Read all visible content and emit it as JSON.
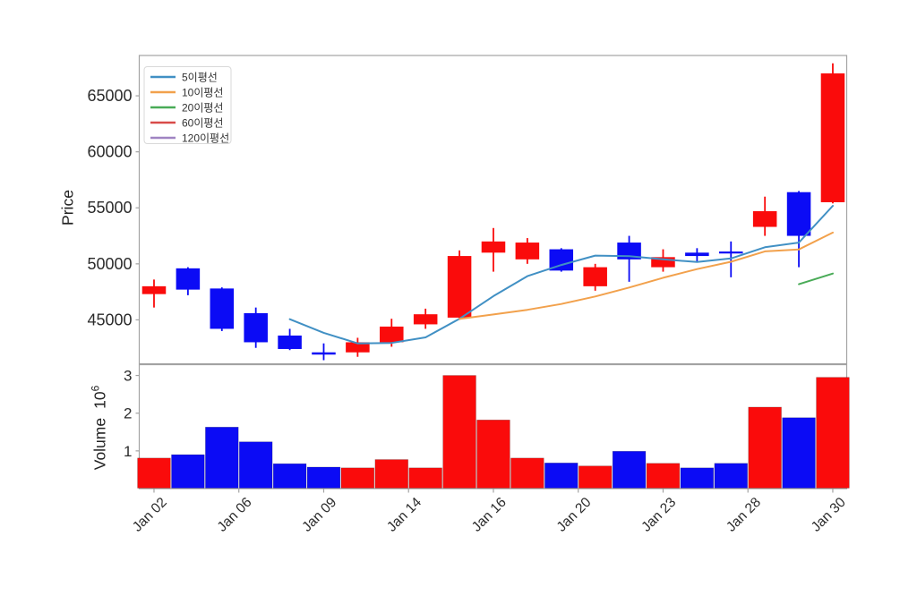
{
  "figure": {
    "price_ylabel": "Price",
    "volume_ylabel": "Volume",
    "volume_scale_base": "10",
    "volume_scale_exp": "6"
  },
  "chart_data": {
    "type": "candlestick+volume",
    "title": "",
    "price": {
      "label": "Price",
      "ticks": [
        45000,
        50000,
        55000,
        60000,
        65000
      ],
      "ylim": [
        41080,
        68600
      ]
    },
    "volume": {
      "label": "Volume",
      "unit": "10^6",
      "ticks": [
        1,
        2,
        3
      ],
      "ylim": [
        0,
        3.286
      ]
    },
    "xlim": [
      -0.435,
      20.41
    ],
    "x_ticks": [
      {
        "pos": 0,
        "label": "Jan 02"
      },
      {
        "pos": 2.5,
        "label": "Jan 06"
      },
      {
        "pos": 5,
        "label": "Jan 09"
      },
      {
        "pos": 7.5,
        "label": "Jan 14"
      },
      {
        "pos": 10,
        "label": "Jan 16"
      },
      {
        "pos": 12.5,
        "label": "Jan 20"
      },
      {
        "pos": 15,
        "label": "Jan 23"
      },
      {
        "pos": 17.5,
        "label": "Jan 28"
      },
      {
        "pos": 20,
        "label": "Jan 30"
      }
    ],
    "legend": [
      {
        "label": "5이평선",
        "color": "#4190c4"
      },
      {
        "label": "10이평선",
        "color": "#f2a14c"
      },
      {
        "label": "20이평선",
        "color": "#49ab57"
      },
      {
        "label": "60이평선",
        "color": "#d84b49"
      },
      {
        "label": "120이평선",
        "color": "#a084c2"
      }
    ],
    "up_color": "#fa0b0b",
    "down_color": "#0b0bf5",
    "candles": [
      {
        "i": 0,
        "open": 47300,
        "high": 48600,
        "low": 46100,
        "close": 48000,
        "volume": 0.81,
        "dir": "up"
      },
      {
        "i": 1,
        "open": 49600,
        "high": 49700,
        "low": 47200,
        "close": 47700,
        "volume": 0.9,
        "dir": "down"
      },
      {
        "i": 2,
        "open": 47800,
        "high": 47900,
        "low": 44000,
        "close": 44200,
        "volume": 1.63,
        "dir": "down"
      },
      {
        "i": 3,
        "open": 45600,
        "high": 46100,
        "low": 42500,
        "close": 43000,
        "volume": 1.24,
        "dir": "down"
      },
      {
        "i": 4,
        "open": 43600,
        "high": 44200,
        "low": 42300,
        "close": 42400,
        "volume": 0.66,
        "dir": "down"
      },
      {
        "i": 5,
        "open": 42100,
        "high": 42900,
        "low": 41400,
        "close": 41900,
        "volume": 0.57,
        "dir": "down"
      },
      {
        "i": 6,
        "open": 42100,
        "high": 43400,
        "low": 41700,
        "close": 43000,
        "volume": 0.55,
        "dir": "up"
      },
      {
        "i": 7,
        "open": 43000,
        "high": 45100,
        "low": 42600,
        "close": 44400,
        "volume": 0.77,
        "dir": "up"
      },
      {
        "i": 8,
        "open": 44600,
        "high": 46000,
        "low": 44200,
        "close": 45500,
        "volume": 0.55,
        "dir": "up"
      },
      {
        "i": 9,
        "open": 45200,
        "high": 51200,
        "low": 45000,
        "close": 50700,
        "volume": 3.0,
        "dir": "up"
      },
      {
        "i": 10,
        "open": 51000,
        "high": 53200,
        "low": 49300,
        "close": 52000,
        "volume": 1.82,
        "dir": "up"
      },
      {
        "i": 11,
        "open": 50400,
        "high": 52300,
        "low": 50000,
        "close": 51900,
        "volume": 0.81,
        "dir": "up"
      },
      {
        "i": 12,
        "open": 51300,
        "high": 51400,
        "low": 49300,
        "close": 49400,
        "volume": 0.68,
        "dir": "down"
      },
      {
        "i": 13,
        "open": 48000,
        "high": 50000,
        "low": 47600,
        "close": 49700,
        "volume": 0.6,
        "dir": "up"
      },
      {
        "i": 14,
        "open": 51900,
        "high": 52500,
        "low": 48400,
        "close": 50400,
        "volume": 0.99,
        "dir": "down"
      },
      {
        "i": 15,
        "open": 49700,
        "high": 51300,
        "low": 49300,
        "close": 50600,
        "volume": 0.67,
        "dir": "up"
      },
      {
        "i": 16,
        "open": 51000,
        "high": 51400,
        "low": 50200,
        "close": 50700,
        "volume": 0.55,
        "dir": "down"
      },
      {
        "i": 17,
        "open": 51100,
        "high": 52000,
        "low": 48800,
        "close": 51000,
        "volume": 0.67,
        "dir": "down"
      },
      {
        "i": 18,
        "open": 53300,
        "high": 56000,
        "low": 52500,
        "close": 54700,
        "volume": 2.16,
        "dir": "up"
      },
      {
        "i": 19,
        "open": 56400,
        "high": 56500,
        "low": 49700,
        "close": 52500,
        "volume": 1.88,
        "dir": "down"
      },
      {
        "i": 20,
        "open": 55500,
        "high": 67900,
        "low": 55400,
        "close": 67000,
        "volume": 2.95,
        "dir": "up"
      }
    ],
    "ma5": {
      "start": 4,
      "color": "#4190c4",
      "values": [
        45060,
        43840,
        42900,
        42940,
        43440,
        45100,
        47120,
        48900,
        49900,
        50740,
        50680,
        50400,
        50160,
        50480,
        51480,
        51900,
        55180
      ]
    },
    "ma10": {
      "start": 9,
      "color": "#f2a14c",
      "values": [
        45080,
        45480,
        45900,
        46420,
        47090,
        47890,
        48760,
        49530,
        50190,
        51110,
        51290,
        52790
      ]
    },
    "ma20": {
      "start": 19,
      "color": "#49ab57",
      "values": [
        48185,
        49135
      ]
    },
    "ma60": {
      "start": -1,
      "color": "#d84b49",
      "values": []
    },
    "ma120": {
      "start": -1,
      "color": "#a084c2",
      "values": []
    }
  }
}
